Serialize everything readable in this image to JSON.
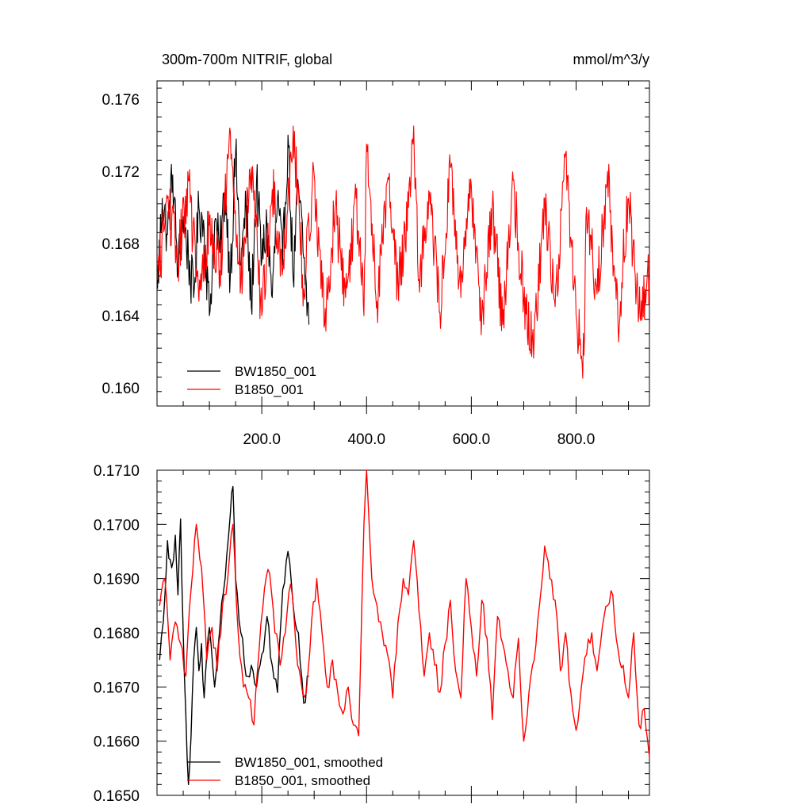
{
  "chart_data": [
    {
      "type": "line",
      "title_left": "300m-700m NITRIF, global",
      "title_right": "mmol/m^3/y",
      "xlim": [
        0,
        940
      ],
      "ylim": [
        0.159,
        0.177
      ],
      "x_ticks": [
        200,
        400,
        600,
        800
      ],
      "x_tick_labels": [
        "200.0",
        "400.0",
        "600.0",
        "800.0"
      ],
      "y_ticks": [
        0.16,
        0.164,
        0.168,
        0.172,
        0.176
      ],
      "y_tick_labels": [
        "0.160",
        "0.164",
        "0.168",
        "0.172",
        "0.176"
      ],
      "series": [
        {
          "name": "BW1850_001",
          "color": "#000000",
          "x": [
            1,
            10,
            20,
            30,
            40,
            50,
            60,
            70,
            80,
            90,
            100,
            110,
            120,
            130,
            140,
            150,
            160,
            170,
            180,
            190,
            200,
            210,
            220,
            230,
            240,
            250,
            260,
            270,
            280,
            290
          ],
          "values": [
            0.1655,
            0.1705,
            0.1685,
            0.1718,
            0.1665,
            0.1695,
            0.1672,
            0.165,
            0.17,
            0.1688,
            0.164,
            0.1692,
            0.1675,
            0.171,
            0.1662,
            0.173,
            0.1668,
            0.17,
            0.1645,
            0.1715,
            0.167,
            0.169,
            0.165,
            0.1705,
            0.1668,
            0.174,
            0.166,
            0.1712,
            0.1672,
            0.1635
          ]
        },
        {
          "name": "B1850_001",
          "color": "#ff0000",
          "x": [
            1,
            20,
            40,
            60,
            80,
            100,
            120,
            140,
            160,
            180,
            200,
            220,
            240,
            260,
            280,
            300,
            320,
            340,
            360,
            380,
            395,
            400,
            420,
            440,
            460,
            480,
            490,
            500,
            520,
            540,
            560,
            580,
            600,
            620,
            640,
            660,
            680,
            700,
            720,
            740,
            760,
            780,
            800,
            815,
            820,
            840,
            860,
            880,
            900,
            920,
            940
          ],
          "values": [
            0.166,
            0.1705,
            0.167,
            0.1715,
            0.1648,
            0.169,
            0.1665,
            0.1742,
            0.1658,
            0.1722,
            0.164,
            0.171,
            0.1665,
            0.1745,
            0.1655,
            0.1718,
            0.1635,
            0.17,
            0.165,
            0.1705,
            0.164,
            0.1735,
            0.1648,
            0.1715,
            0.1658,
            0.17,
            0.1745,
            0.166,
            0.1708,
            0.1642,
            0.1722,
            0.165,
            0.1712,
            0.164,
            0.17,
            0.1635,
            0.1715,
            0.1648,
            0.1626,
            0.1705,
            0.1645,
            0.173,
            0.164,
            0.1618,
            0.17,
            0.1652,
            0.172,
            0.1635,
            0.1705,
            0.1642,
            0.166
          ]
        }
      ],
      "legend": [
        "BW1850_001",
        "B1850_001"
      ],
      "legend_position": "bottom-left"
    },
    {
      "type": "line",
      "xlim": [
        0,
        940
      ],
      "ylim": [
        0.165,
        0.171
      ],
      "y_ticks": [
        0.165,
        0.166,
        0.167,
        0.168,
        0.169,
        0.17,
        0.171
      ],
      "y_tick_labels": [
        "0.1650",
        "0.1660",
        "0.1670",
        "0.1680",
        "0.1690",
        "0.1700",
        "0.1710"
      ],
      "series": [
        {
          "name": "BW1850_001, smoothed",
          "color": "#000000",
          "x": [
            5,
            12,
            20,
            28,
            35,
            40,
            45,
            50,
            55,
            60,
            65,
            70,
            75,
            80,
            85,
            90,
            95,
            100,
            110,
            120,
            130,
            140,
            145,
            150,
            160,
            170,
            180,
            190,
            200,
            210,
            220,
            230,
            240,
            250,
            260,
            270,
            280,
            290
          ],
          "values": [
            0.1675,
            0.1682,
            0.1697,
            0.1692,
            0.1698,
            0.1687,
            0.1701,
            0.168,
            0.1665,
            0.1652,
            0.1661,
            0.1675,
            0.1681,
            0.1673,
            0.1678,
            0.1668,
            0.1676,
            0.1681,
            0.167,
            0.1681,
            0.169,
            0.1702,
            0.1707,
            0.169,
            0.168,
            0.1672,
            0.1674,
            0.167,
            0.1676,
            0.1683,
            0.1674,
            0.1669,
            0.1688,
            0.1695,
            0.1685,
            0.168,
            0.1667,
            0.1672
          ]
        },
        {
          "name": "B1850_001, smoothed",
          "color": "#ff0000",
          "x": [
            5,
            15,
            25,
            35,
            45,
            55,
            65,
            75,
            85,
            95,
            105,
            115,
            125,
            135,
            145,
            155,
            165,
            175,
            185,
            195,
            205,
            215,
            225,
            235,
            245,
            255,
            265,
            275,
            285,
            295,
            305,
            315,
            325,
            335,
            345,
            355,
            365,
            375,
            385,
            395,
            400,
            410,
            420,
            430,
            440,
            450,
            460,
            470,
            480,
            490,
            500,
            510,
            520,
            530,
            540,
            550,
            560,
            570,
            580,
            590,
            600,
            610,
            620,
            630,
            640,
            650,
            660,
            670,
            680,
            690,
            700,
            710,
            720,
            730,
            740,
            750,
            760,
            770,
            780,
            790,
            800,
            810,
            820,
            830,
            840,
            850,
            860,
            870,
            880,
            890,
            900,
            910,
            920,
            930,
            940
          ],
          "values": [
            0.1685,
            0.169,
            0.1675,
            0.1682,
            0.1678,
            0.1672,
            0.1688,
            0.17,
            0.1692,
            0.1675,
            0.1681,
            0.1673,
            0.1685,
            0.169,
            0.17,
            0.168,
            0.167,
            0.1668,
            0.1663,
            0.1677,
            0.1688,
            0.1691,
            0.168,
            0.1674,
            0.168,
            0.1689,
            0.1678,
            0.1671,
            0.1669,
            0.1682,
            0.169,
            0.168,
            0.167,
            0.1675,
            0.1669,
            0.1665,
            0.167,
            0.1663,
            0.1661,
            0.17,
            0.171,
            0.169,
            0.1685,
            0.168,
            0.1676,
            0.1668,
            0.1682,
            0.169,
            0.1687,
            0.1697,
            0.1684,
            0.1672,
            0.168,
            0.1674,
            0.1669,
            0.1678,
            0.1686,
            0.1673,
            0.1668,
            0.169,
            0.1681,
            0.1672,
            0.1686,
            0.1679,
            0.1664,
            0.1683,
            0.1678,
            0.1673,
            0.1668,
            0.1679,
            0.166,
            0.1669,
            0.1675,
            0.1685,
            0.1696,
            0.169,
            0.1686,
            0.1673,
            0.168,
            0.1669,
            0.1662,
            0.167,
            0.1676,
            0.168,
            0.1673,
            0.1681,
            0.1685,
            0.1687,
            0.1677,
            0.1674,
            0.1668,
            0.168,
            0.1663,
            0.1666,
            0.1657
          ],
          "__note_removed": true
        }
      ],
      "legend": [
        "BW1850_001, smoothed",
        "B1850_001, smoothed"
      ],
      "legend_position": "bottom-left"
    }
  ]
}
